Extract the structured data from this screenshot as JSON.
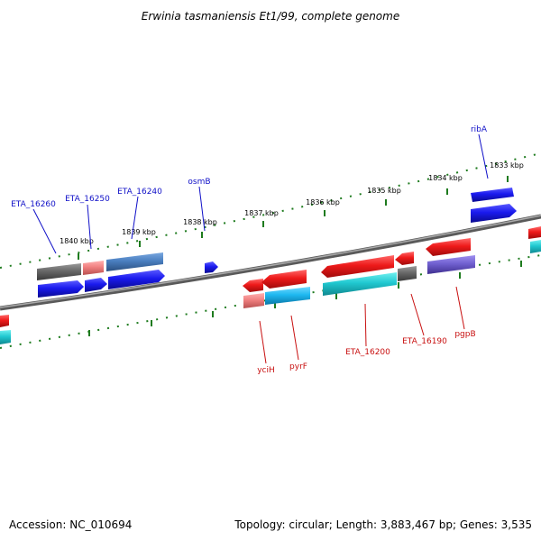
{
  "title": "Erwinia tasmaniensis Et1/99, complete genome",
  "footer": {
    "accession": "Accession: NC_010694",
    "summary": "Topology: circular; Length: 3,883,467 bp; Genes: 3,535"
  },
  "ticks": [
    "1840 kbp",
    "1839 kbp",
    "1838 kbp",
    "1837 kbp",
    "1836 kbp",
    "1835 kbp",
    "1834 kbp",
    "1833 kbp"
  ],
  "labels": {
    "top": [
      "ETA_16260",
      "ETA_16250",
      "ETA_16240",
      "osmB",
      "ribA"
    ],
    "bottom": [
      "yciH",
      "pyrF",
      "ETA_16200",
      "ETA_16190",
      "pgpB"
    ]
  },
  "colors": {
    "backbone": "#777777",
    "tick": "#1e7b1e",
    "top_label": "#1010c8",
    "bottom_label": "#c81010",
    "forward_gene": "#1a1aee",
    "forward_gene_steel": "#4a7fc0",
    "reverse_gene": "#ee1a1a",
    "reverse_gene_pink": "#f08080",
    "cyan_gene": "#20c8d0",
    "deep_sky": "#1eb8f0",
    "grey_gene": "#686868",
    "purple_gene": "#7060d0"
  }
}
